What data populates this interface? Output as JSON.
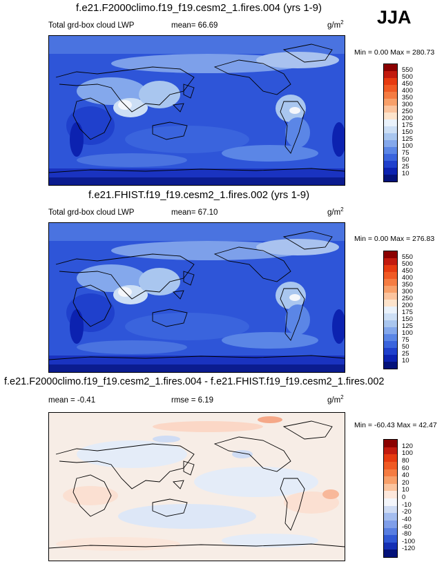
{
  "season": "JJA",
  "panels": [
    {
      "title": "f.e21.F2000climo.f19_f19.cesm2_1.fires.004 (yrs 1-9)",
      "variable": "Total grd-box cloud LWP",
      "stats_left": "",
      "stats_mid": "mean=  66.69",
      "units_base": "g/m",
      "units_exp": "2",
      "minmax": "Min =   0.00 Max = 280.73",
      "colorbar": {
        "labels": [
          "550",
          "500",
          "450",
          "400",
          "350",
          "300",
          "250",
          "200",
          "175",
          "150",
          "125",
          "100",
          "75",
          "50",
          "25",
          "10"
        ],
        "colors": [
          "#8b0000",
          "#c21a0e",
          "#e63a10",
          "#f05a24",
          "#f57c42",
          "#f8a06a",
          "#fbc49e",
          "#fde4cc",
          "#eaf2fb",
          "#cddff5",
          "#a9c6ef",
          "#84a8ec",
          "#5b86e6",
          "#3a64dd",
          "#1f40cc",
          "#0c22b0",
          "#04127a"
        ]
      }
    },
    {
      "title": "f.e21.FHIST.f19_f19.cesm2_1.fires.002 (yrs 1-9)",
      "variable": "Total grd-box cloud LWP",
      "stats_left": "",
      "stats_mid": "mean=  67.10",
      "units_base": "g/m",
      "units_exp": "2",
      "minmax": "Min =   0.00 Max = 276.83",
      "colorbar": {
        "labels": [
          "550",
          "500",
          "450",
          "400",
          "350",
          "300",
          "250",
          "200",
          "175",
          "150",
          "125",
          "100",
          "75",
          "50",
          "25",
          "10"
        ],
        "colors": [
          "#8b0000",
          "#c21a0e",
          "#e63a10",
          "#f05a24",
          "#f57c42",
          "#f8a06a",
          "#fbc49e",
          "#fde4cc",
          "#eaf2fb",
          "#cddff5",
          "#a9c6ef",
          "#84a8ec",
          "#5b86e6",
          "#3a64dd",
          "#1f40cc",
          "#0c22b0",
          "#04127a"
        ]
      }
    },
    {
      "title": "f.e21.F2000climo.f19_f19.cesm2_1.fires.004 - f.e21.FHIST.f19_f19.cesm2_1.fires.002",
      "variable": "",
      "stats_left": "mean =  -0.41",
      "stats_mid": "rmse =   6.19",
      "units_base": "g/m",
      "units_exp": "2",
      "minmax": "Min = -60.43 Max =  42.47",
      "colorbar": {
        "labels": [
          "120",
          "100",
          "80",
          "60",
          "40",
          "20",
          "10",
          "0",
          "-10",
          "-20",
          "-40",
          "-60",
          "-80",
          "-100",
          "-120"
        ],
        "colors": [
          "#8b0000",
          "#c21a0e",
          "#e63a10",
          "#f05a24",
          "#f57c42",
          "#f8a06a",
          "#fbc49e",
          "#fde8dc",
          "#f4f6fb",
          "#cfdcf4",
          "#a4bdef",
          "#7f9ee9",
          "#587ee1",
          "#3058d4",
          "#1530b4",
          "#04127a"
        ]
      }
    }
  ],
  "chart_data": {
    "type": "heatmap",
    "season": "JJA",
    "maps": [
      {
        "title": "f.e21.F2000climo.f19_f19.cesm2_1.fires.004 (yrs 1-9)",
        "variable": "Total grd-box cloud LWP",
        "mean": 66.69,
        "min": 0.0,
        "max": 280.73,
        "units": "g/m2",
        "contour_levels": [
          10,
          25,
          50,
          75,
          100,
          125,
          150,
          175,
          200,
          250,
          300,
          350,
          400,
          450,
          500,
          550
        ]
      },
      {
        "title": "f.e21.FHIST.f19_f19.cesm2_1.fires.002 (yrs 1-9)",
        "variable": "Total grd-box cloud LWP",
        "mean": 67.1,
        "min": 0.0,
        "max": 276.83,
        "units": "g/m2",
        "contour_levels": [
          10,
          25,
          50,
          75,
          100,
          125,
          150,
          175,
          200,
          250,
          300,
          350,
          400,
          450,
          500,
          550
        ]
      },
      {
        "title": "f.e21.F2000climo.f19_f19.cesm2_1.fires.004 - f.e21.FHIST.f19_f19.cesm2_1.fires.002",
        "mean": -0.41,
        "rmse": 6.19,
        "min": -60.43,
        "max": 42.47,
        "units": "g/m2",
        "contour_levels": [
          -120,
          -100,
          -80,
          -60,
          -40,
          -20,
          -10,
          0,
          10,
          20,
          40,
          60,
          80,
          100,
          120
        ]
      }
    ]
  }
}
